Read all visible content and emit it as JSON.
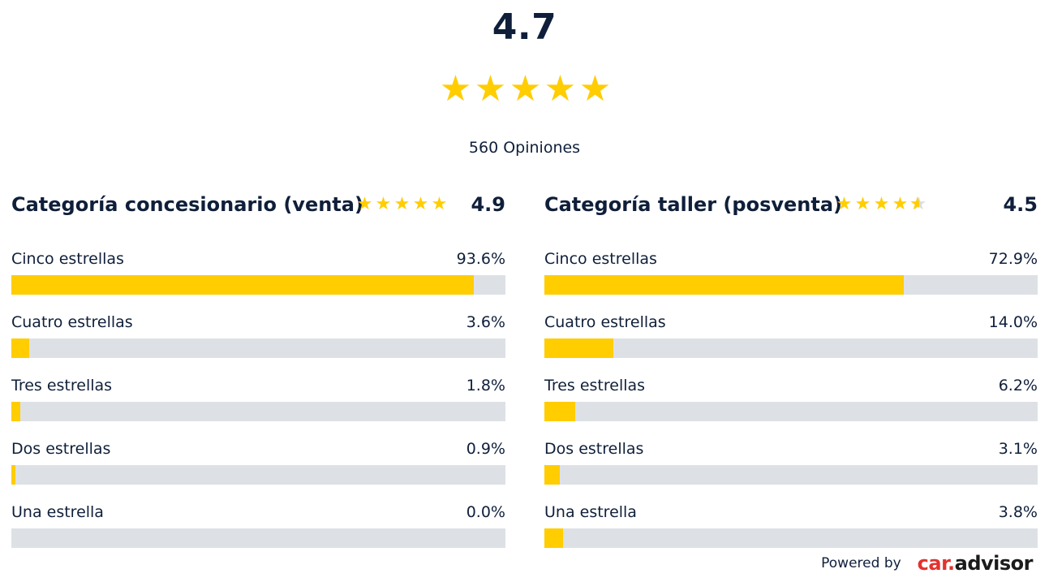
{
  "overall": {
    "score": "4.7",
    "rating": 4.7,
    "review_count": "560 Opiniones"
  },
  "colors": {
    "star": "#ffcd00",
    "bar_fill": "#ffcd00",
    "bar_track": "#dde1e6",
    "text": "#0f1f3a",
    "brand_red": "#e3322e"
  },
  "categories": [
    {
      "title": "Categoría concesionario (venta)",
      "score": "4.9",
      "rating": 4.9,
      "rows": [
        {
          "label": "Cinco estrellas",
          "percent": "93.6%",
          "value": 93.6
        },
        {
          "label": "Cuatro estrellas",
          "percent": "3.6%",
          "value": 3.6
        },
        {
          "label": "Tres estrellas",
          "percent": "1.8%",
          "value": 1.8
        },
        {
          "label": "Dos estrellas",
          "percent": "0.9%",
          "value": 0.9
        },
        {
          "label": "Una estrella",
          "percent": "0.0%",
          "value": 0.0
        }
      ]
    },
    {
      "title": "Categoría taller (posventa)",
      "score": "4.5",
      "rating": 4.5,
      "rows": [
        {
          "label": "Cinco estrellas",
          "percent": "72.9%",
          "value": 72.9
        },
        {
          "label": "Cuatro estrellas",
          "percent": "14.0%",
          "value": 14.0
        },
        {
          "label": "Tres estrellas",
          "percent": "6.2%",
          "value": 6.2
        },
        {
          "label": "Dos estrellas",
          "percent": "3.1%",
          "value": 3.1
        },
        {
          "label": "Una estrella",
          "percent": "3.8%",
          "value": 3.8
        }
      ]
    }
  ],
  "footer": {
    "powered_by": "Powered by",
    "brand_car": "car",
    "brand_dot": ".",
    "brand_advisor": "advisor"
  }
}
